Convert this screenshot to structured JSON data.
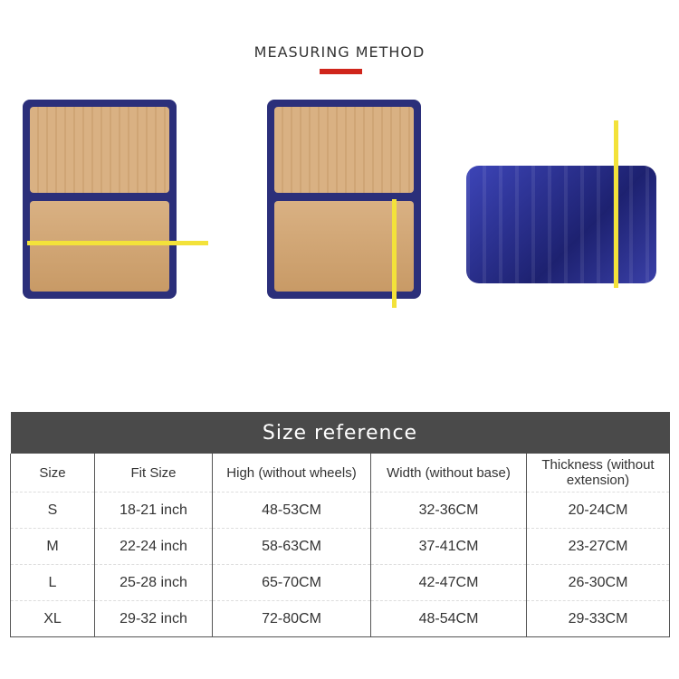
{
  "header": {
    "title": "MEASURING METHOD",
    "accent": "#d0251b"
  },
  "photos": [
    {
      "name": "open-suitcase-width-measure",
      "icon": "suitcase-open"
    },
    {
      "name": "open-suitcase-thickness-measure",
      "icon": "suitcase-open"
    },
    {
      "name": "closed-suitcase-height-measure",
      "icon": "suitcase-closed"
    }
  ],
  "table": {
    "title": "Size reference",
    "columns": [
      "Size",
      "Fit Size",
      "High (without wheels)",
      "Width (without base)",
      "Thickness (without extension)"
    ],
    "rows": [
      [
        "S",
        "18-21 inch",
        "48-53CM",
        "32-36CM",
        "20-24CM"
      ],
      [
        "M",
        "22-24 inch",
        "58-63CM",
        "37-41CM",
        "23-27CM"
      ],
      [
        "L",
        "25-28 inch",
        "65-70CM",
        "42-47CM",
        "26-30CM"
      ],
      [
        "XL",
        "29-32 inch",
        "72-80CM",
        "48-54CM",
        "29-33CM"
      ]
    ]
  }
}
